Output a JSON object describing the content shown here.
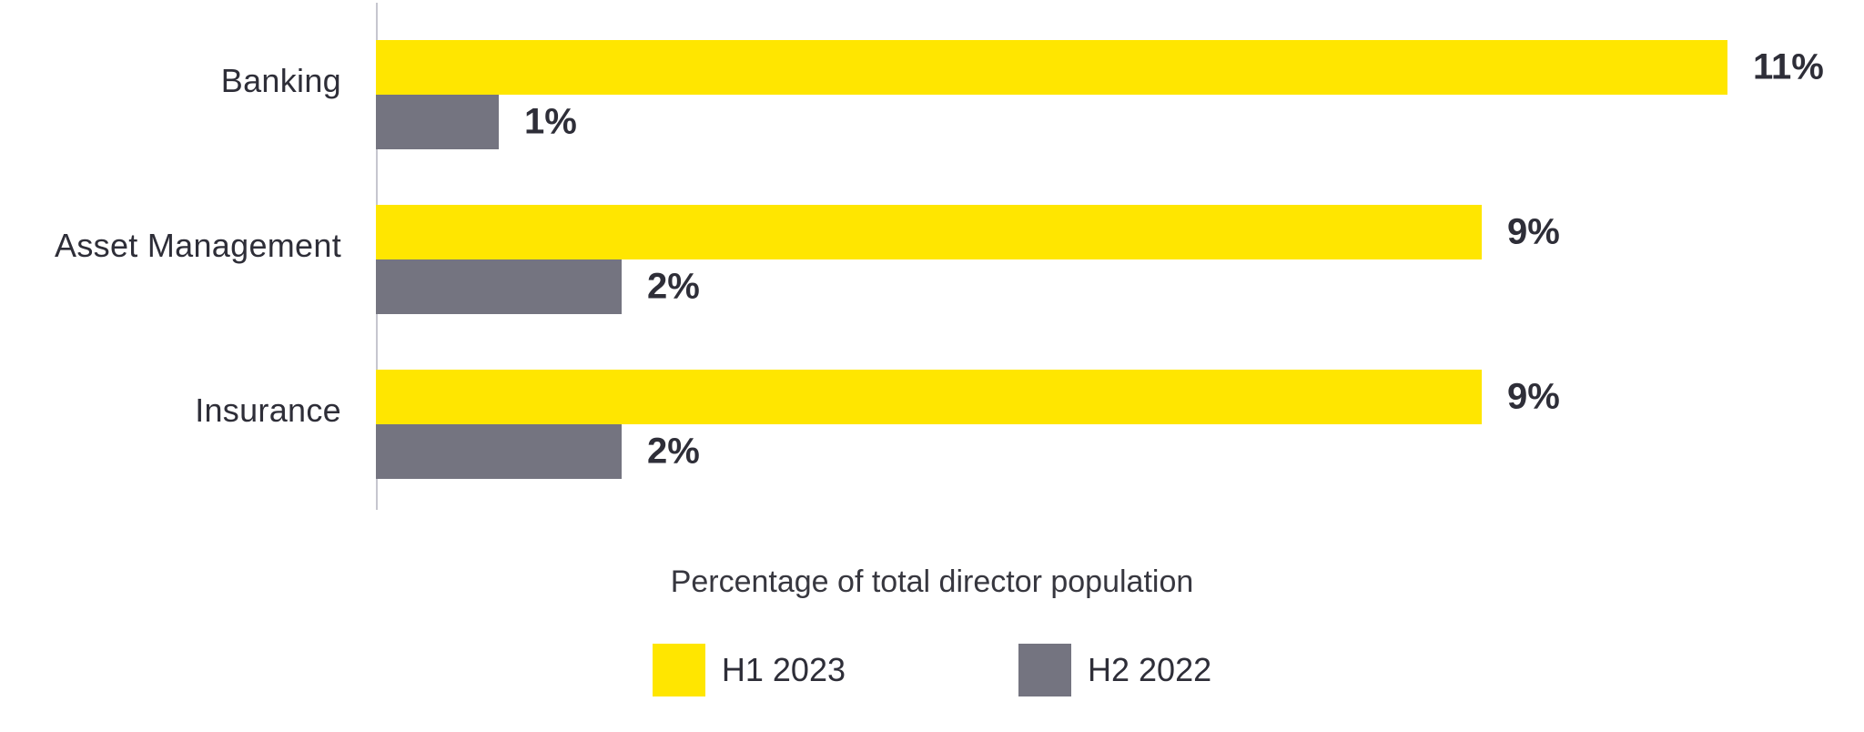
{
  "chart_data": {
    "type": "bar",
    "orientation": "horizontal",
    "categories": [
      "Banking",
      "Asset Management",
      "Insurance"
    ],
    "series": [
      {
        "name": "H1 2023",
        "color": "#FFE600",
        "values": [
          11,
          9,
          9
        ],
        "labels": [
          "11%",
          "9%",
          "9%"
        ]
      },
      {
        "name": "H2 2022",
        "color": "#747480",
        "values": [
          1,
          2,
          2
        ],
        "labels": [
          "1%",
          "2%",
          "2%"
        ]
      }
    ],
    "xlabel": "Percentage of total director population",
    "value_unit": "%",
    "xlim": [
      0,
      12
    ],
    "grid": false,
    "legend_position": "bottom-center"
  },
  "colors": {
    "h1_2023_yellow": "#FFE600",
    "h2_2022_gray": "#747480",
    "text_dark": "#2E2E38",
    "axis_line": "#C6C6CF",
    "background": "#FFFFFF"
  }
}
